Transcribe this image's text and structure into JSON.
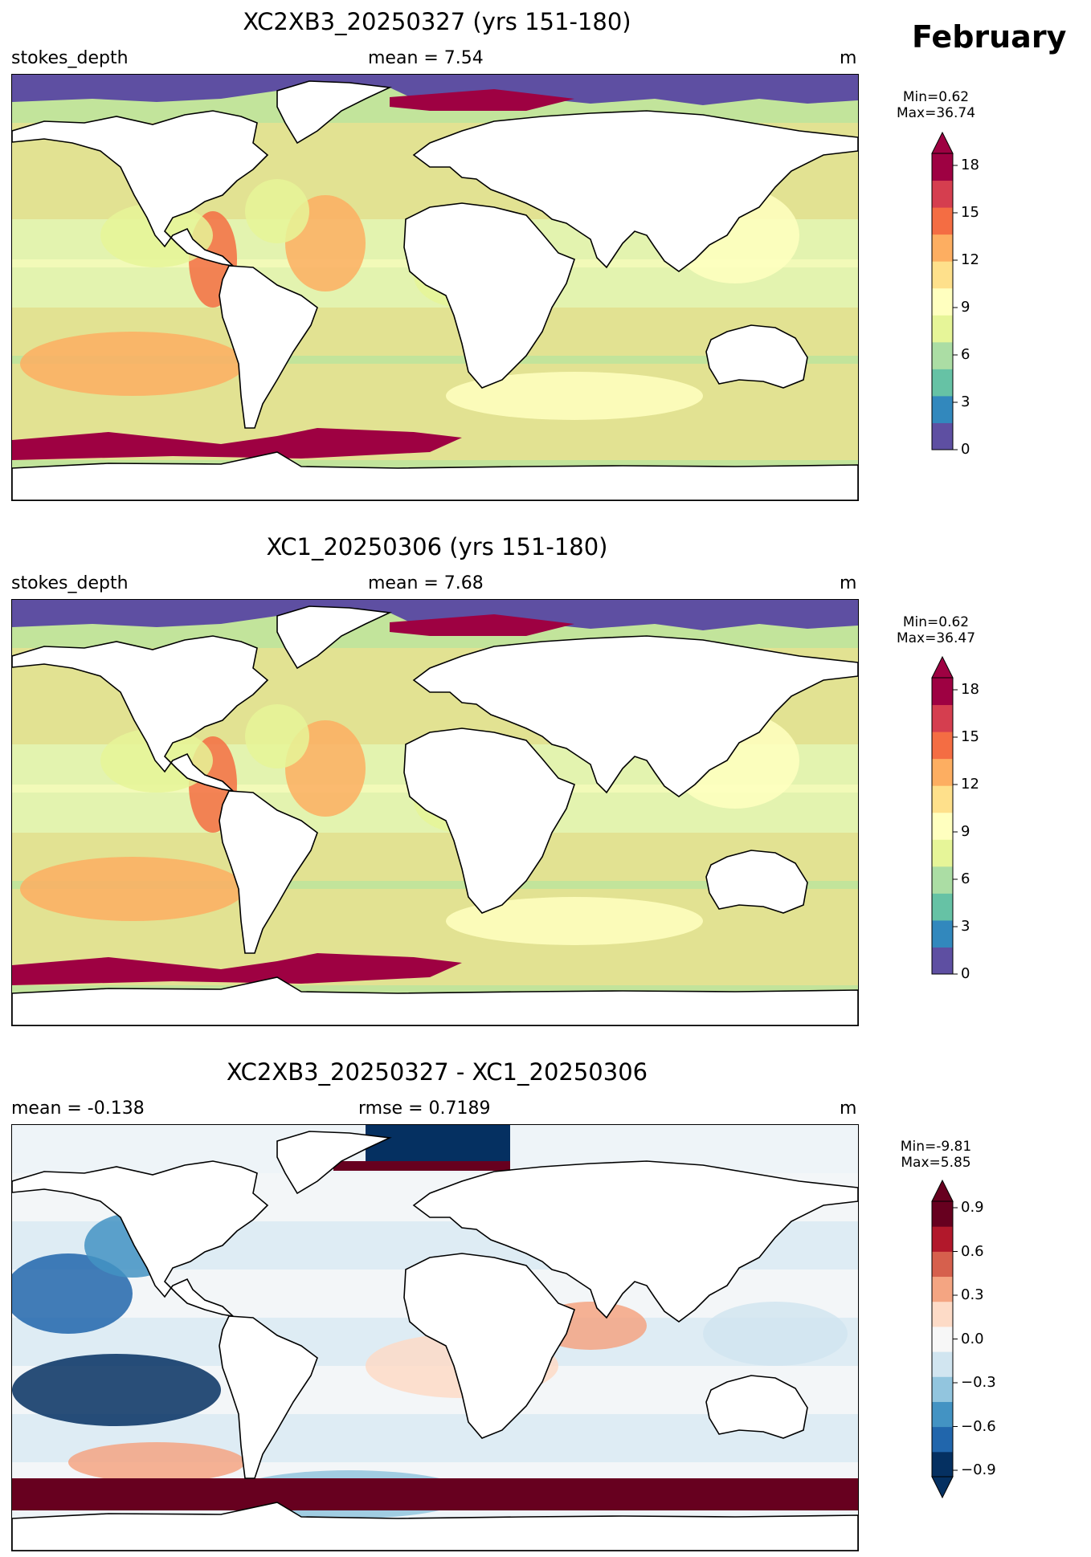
{
  "header": {
    "month": "February"
  },
  "panels": [
    {
      "id": "p1",
      "title": "XC2XB3_20250327 (yrs 151-180)",
      "left_label": "stokes_depth",
      "center_label": "mean = 7.54",
      "right_label": "m",
      "min_label": "Min=0.62",
      "max_label": "Max=36.74",
      "colormap": "Spectral_r",
      "colorbar_ticks": [
        "0",
        "3",
        "6",
        "9",
        "12",
        "15",
        "18"
      ]
    },
    {
      "id": "p2",
      "title": "XC1_20250306 (yrs 151-180)",
      "left_label": "stokes_depth",
      "center_label": "mean = 7.68",
      "right_label": "m",
      "min_label": "Min=0.62",
      "max_label": "Max=36.47",
      "colormap": "Spectral_r",
      "colorbar_ticks": [
        "0",
        "3",
        "6",
        "9",
        "12",
        "15",
        "18"
      ]
    },
    {
      "id": "p3",
      "title": "XC2XB3_20250327 - XC1_20250306",
      "left_label": "mean = -0.138",
      "center_label": "rmse = 0.7189",
      "right_label": "m",
      "min_label": "Min=-9.81",
      "max_label": "Max=5.85",
      "colormap": "RdBu_r",
      "colorbar_ticks": [
        "−0.9",
        "−0.6",
        "−0.3",
        "0.0",
        "0.3",
        "0.6",
        "0.9"
      ]
    }
  ],
  "colors": {
    "spectral": [
      "#5e4fa2",
      "#3288bd",
      "#66c2a5",
      "#abdda4",
      "#e6f598",
      "#ffffbf",
      "#fee08b",
      "#fdae61",
      "#f46d43",
      "#d53e4f",
      "#9e0142"
    ],
    "rdbu": [
      "#053061",
      "#2166ac",
      "#4393c3",
      "#92c5de",
      "#d1e5f0",
      "#f7f7f7",
      "#fddbc7",
      "#f4a582",
      "#d6604d",
      "#b2182b",
      "#67001f"
    ]
  }
}
